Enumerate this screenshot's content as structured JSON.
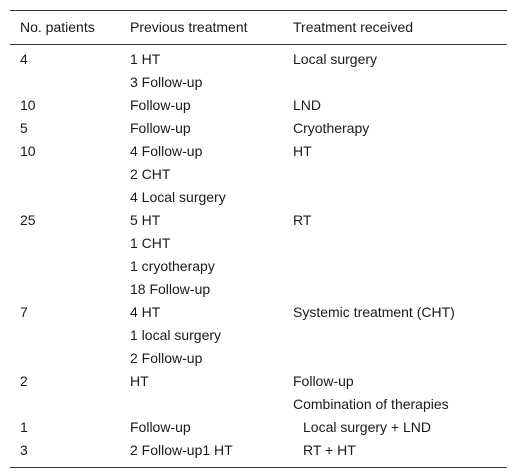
{
  "table": {
    "headers": [
      "No. patients",
      "Previous treatment",
      "Treatment received"
    ],
    "rows": [
      [
        "4",
        "1 HT",
        "Local surgery"
      ],
      [
        "",
        "3 Follow-up",
        ""
      ],
      [
        "10",
        "Follow-up",
        "LND"
      ],
      [
        "5",
        "Follow-up",
        "Cryotherapy"
      ],
      [
        "10",
        "4 Follow-up",
        "HT"
      ],
      [
        "",
        "2 CHT",
        ""
      ],
      [
        "",
        "4 Local surgery",
        ""
      ],
      [
        "25",
        "5 HT",
        "RT"
      ],
      [
        "",
        "1 CHT",
        ""
      ],
      [
        "",
        "1 cryotherapy",
        ""
      ],
      [
        "",
        "18 Follow-up",
        ""
      ],
      [
        "7",
        "4 HT",
        "Systemic treatment (CHT)"
      ],
      [
        "",
        "1 local surgery",
        ""
      ],
      [
        "",
        "2 Follow-up",
        ""
      ],
      [
        "2",
        "HT",
        "Follow-up"
      ],
      [
        "",
        "",
        "Combination of therapies"
      ],
      [
        "1",
        "Follow-up",
        "Local surgery + LND"
      ],
      [
        "3",
        "2 Follow-up1 HT",
        "RT + HT"
      ]
    ]
  }
}
